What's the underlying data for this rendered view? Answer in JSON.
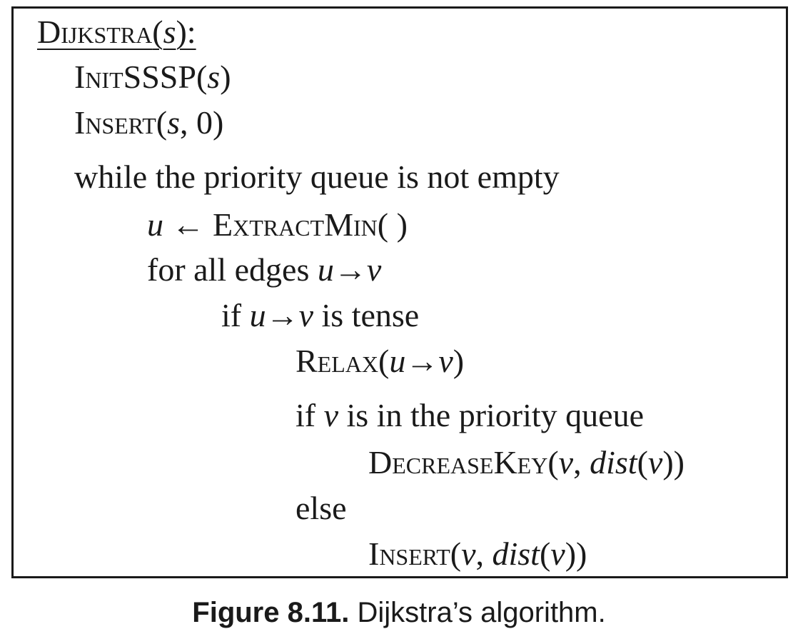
{
  "algorithm": {
    "header": {
      "name": "Dijkstra",
      "open": "(",
      "arg": "s",
      "close": "):"
    },
    "line1": {
      "name": "InitSSSP",
      "open": "(",
      "arg": "s",
      "close": ")"
    },
    "line2": {
      "name": "Insert",
      "open": "(",
      "arg": "s",
      "sep": ", ",
      "value": "0",
      "close": ")"
    },
    "line3": {
      "text": "while the priority queue is not empty"
    },
    "line4": {
      "var": "u",
      "arrow": " ← ",
      "name": "ExtractMin",
      "call": "( )"
    },
    "line5": {
      "text": "for all edges ",
      "edge": "u→v"
    },
    "line6": {
      "pre": "if ",
      "edge": "u→v",
      "post": " is tense"
    },
    "line7": {
      "name": "Relax",
      "open": "(",
      "edge": "u→v",
      "close": ")"
    },
    "line8": {
      "pre": "if ",
      "var": "v",
      "post": " is in the priority queue"
    },
    "line9": {
      "name": "DecreaseKey",
      "open": "(",
      "var": "v",
      "sep": ", ",
      "func": "dist",
      "inner_open": "(",
      "inner_var": "v",
      "close": "))"
    },
    "line10": {
      "text": "else"
    },
    "line11": {
      "name": "Insert",
      "open": "(",
      "var": "v",
      "sep": ", ",
      "func": "dist",
      "inner_open": "(",
      "inner_var": "v",
      "close": "))"
    }
  },
  "caption": {
    "label": "Figure 8.11.",
    "text": " Dijkstra’s algorithm."
  }
}
